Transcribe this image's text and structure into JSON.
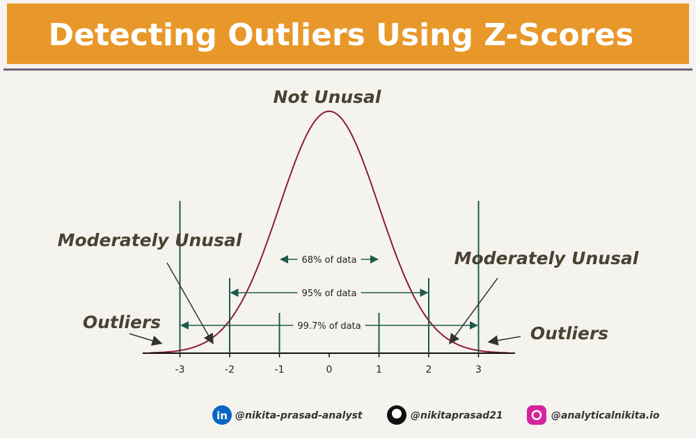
{
  "header": {
    "title": "Detecting Outliers Using Z-Scores"
  },
  "diagram": {
    "peak_label": "Not Unusal",
    "left_moderate": "Moderately Unusal",
    "right_moderate": "Moderately Unusal",
    "left_outliers": "Outliers",
    "right_outliers": "Outliers",
    "ticks": [
      -3,
      -2,
      -1,
      0,
      1,
      2,
      3
    ],
    "ranges": [
      "68% of data",
      "95% of data",
      "99.7% of data"
    ]
  },
  "footer": {
    "linkedin": "@nikita-prasad-analyst",
    "github": "@nikitaprasad21",
    "instagram": "@analyticalnikita.io"
  }
}
